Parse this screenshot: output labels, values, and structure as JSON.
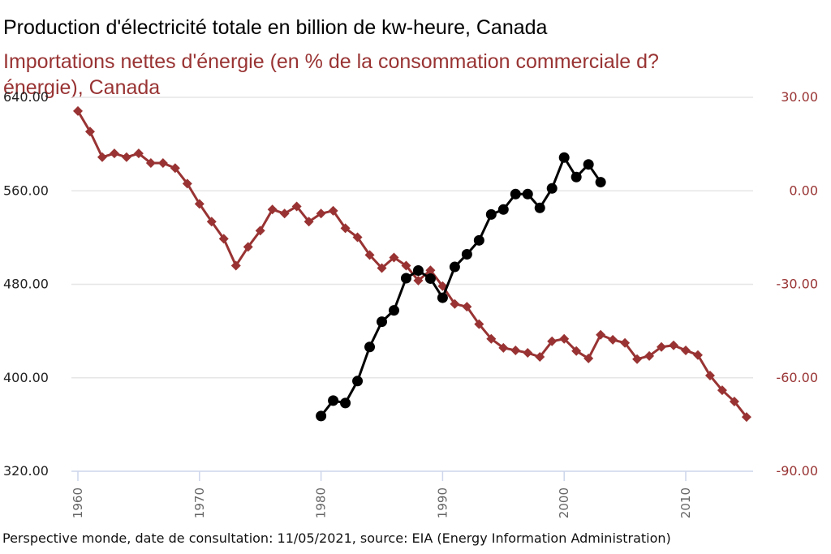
{
  "footer": "Perspective monde, date de consultation: 11/05/2021, source: EIA (Energy Information Administration)",
  "chart_data": {
    "type": "line",
    "titles": [
      "Production d'électricité totale en billion de kw-heure, Canada",
      "Importations nettes d'énergie (en % de la consommation commerciale d?énergie), Canada"
    ],
    "xlabel": "",
    "xlim": [
      1960,
      2015
    ],
    "x_ticks": [
      "1960",
      "1970",
      "1980",
      "1990",
      "2000",
      "2010"
    ],
    "grid": true,
    "legend": "none",
    "axes": {
      "left": {
        "ylim": [
          320,
          640
        ],
        "ticks": [
          "640.00",
          "560.00",
          "480.00",
          "400.00",
          "320.00"
        ],
        "color": "#222222"
      },
      "right": {
        "ylim": [
          -90,
          30
        ],
        "ticks": [
          "30.00",
          "0.00",
          "-30.00",
          "-60.00",
          "-90.00"
        ],
        "color": "#993333"
      }
    },
    "series": [
      {
        "name": "Production d'électricité totale en billion de kw-heure, Canada",
        "axis": "left",
        "color": "#000000",
        "marker": "circle",
        "x": [
          1980,
          1981,
          1982,
          1983,
          1984,
          1985,
          1986,
          1987,
          1988,
          1989,
          1990,
          1991,
          1992,
          1993,
          1994,
          1995,
          1996,
          1997,
          1998,
          1999,
          2000,
          2001,
          2002,
          2003
        ],
        "values": [
          367.3,
          380.5,
          378.4,
          397.2,
          426.4,
          448.0,
          457.7,
          485.2,
          491.8,
          484.9,
          468.5,
          494.9,
          505.7,
          517.6,
          539.8,
          544.0,
          557.2,
          557.2,
          545.4,
          562.1,
          588.5,
          571.8,
          582.6,
          567.4
        ]
      },
      {
        "name": "Importations nettes d'énergie (en % de la consommation commerciale d?énergie), Canada",
        "axis": "right",
        "color": "#993333",
        "marker": "diamond",
        "x": [
          1960,
          1961,
          1962,
          1963,
          1964,
          1965,
          1966,
          1967,
          1968,
          1969,
          1970,
          1971,
          1972,
          1973,
          1974,
          1975,
          1976,
          1977,
          1978,
          1979,
          1980,
          1981,
          1982,
          1983,
          1984,
          1985,
          1986,
          1987,
          1988,
          1989,
          1990,
          1991,
          1992,
          1993,
          1994,
          1995,
          1996,
          1997,
          1998,
          1999,
          2000,
          2001,
          2002,
          2003,
          2004,
          2005,
          2006,
          2007,
          2008,
          2009,
          2010,
          2011,
          2012,
          2013,
          2014,
          2015
        ],
        "values": [
          25.6,
          19.0,
          10.8,
          12.0,
          10.8,
          12.0,
          8.9,
          8.9,
          7.3,
          2.3,
          -4.2,
          -9.9,
          -15.4,
          -24.0,
          -18.0,
          -12.8,
          -6.0,
          -7.3,
          -5.0,
          -9.9,
          -7.3,
          -6.4,
          -12.0,
          -14.9,
          -20.6,
          -24.8,
          -21.4,
          -24.0,
          -28.8,
          -25.5,
          -30.6,
          -36.3,
          -37.2,
          -42.8,
          -47.5,
          -50.4,
          -51.2,
          -52.0,
          -53.3,
          -48.3,
          -47.5,
          -51.4,
          -53.8,
          -46.2,
          -47.8,
          -48.8,
          -54.0,
          -53.0,
          -50.1,
          -49.6,
          -51.2,
          -52.7,
          -59.3,
          -64.0,
          -67.6,
          -72.6
        ]
      }
    ]
  }
}
